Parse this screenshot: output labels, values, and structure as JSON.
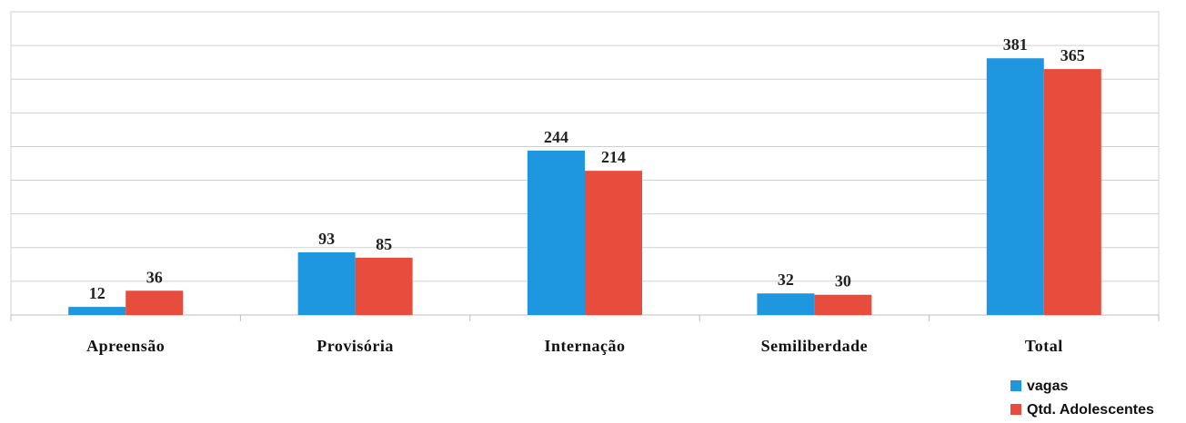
{
  "chart_data": {
    "type": "bar",
    "categories": [
      "Apreensão",
      "Provisória",
      "Internação",
      "Semiliberdade",
      "Total"
    ],
    "series": [
      {
        "name": "vagas",
        "values": [
          12,
          93,
          244,
          32,
          381
        ],
        "color": "#1f97e0"
      },
      {
        "name": "Qtd. Adolescentes",
        "values": [
          36,
          85,
          214,
          30,
          365
        ],
        "color": "#e84c3d"
      }
    ],
    "ylim": [
      0,
      450
    ],
    "y_gridlines": true,
    "y_tick_labels_shown": false,
    "data_labels": true,
    "legend": "bottom-right"
  }
}
